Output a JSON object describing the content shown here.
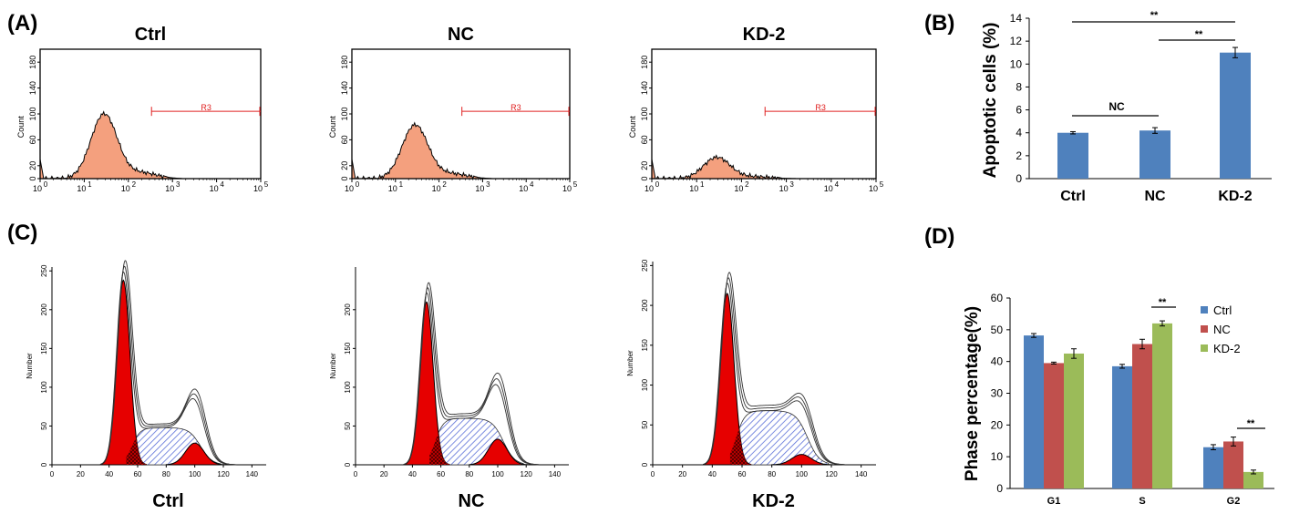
{
  "panel_labels": [
    "(A)",
    "(B)",
    "(C)",
    "(D)"
  ],
  "histograms": {
    "panels": [
      {
        "title": "Ctrl",
        "peak": 100,
        "gate_label": "R3"
      },
      {
        "title": "NC",
        "peak": 83,
        "gate_label": "R3"
      },
      {
        "title": "KD-2",
        "peak": 33,
        "gate_label": "R3"
      }
    ],
    "ylabel": "Count",
    "yticks": [
      "0",
      "20",
      "60",
      "100",
      "140",
      "180"
    ],
    "xticks": [
      "10",
      "10",
      "10",
      "10",
      "10",
      "10"
    ],
    "xexp": [
      "0",
      "1",
      "2",
      "3",
      "4",
      "5"
    ]
  },
  "cellcycle": {
    "panels": [
      {
        "label": "Ctrl",
        "g1_peak": 238,
        "s_level": 48,
        "g2_peak": 28,
        "ymax": 250,
        "yticks": [
          "0",
          "50",
          "100",
          "150",
          "200",
          "250"
        ]
      },
      {
        "label": "NC",
        "g1_peak": 210,
        "s_level": 60,
        "g2_peak": 33,
        "ymax": 250,
        "yticks": [
          "0",
          "50",
          "100",
          "150",
          "200"
        ]
      },
      {
        "label": "KD-2",
        "g1_peak": 215,
        "s_level": 68,
        "g2_peak": 13,
        "ymax": 250,
        "yticks": [
          "0",
          "50",
          "100",
          "150",
          "200",
          "250"
        ]
      }
    ],
    "ylabel": "Number",
    "xticks": [
      "0",
      "20",
      "40",
      "60",
      "80",
      "100",
      "120",
      "140"
    ]
  },
  "chart_data": [
    {
      "type": "bar",
      "panel": "(B)",
      "categories": [
        "Ctrl",
        "NC",
        "KD-2"
      ],
      "values": [
        4.0,
        4.2,
        11.0
      ],
      "errors": [
        0.1,
        0.25,
        0.45
      ],
      "ylabel": "Apoptotic cells (%)",
      "ylim": [
        0,
        14
      ],
      "yticks": [
        "0",
        "2",
        "4",
        "6",
        "8",
        "10",
        "12",
        "14"
      ],
      "color": "#4f81bd",
      "annotations": [
        {
          "text": "**",
          "from": "Ctrl",
          "to": "KD-2"
        },
        {
          "text": "**",
          "from": "NC",
          "to": "KD-2"
        },
        {
          "text": "NC",
          "from": "Ctrl",
          "to": "NC"
        }
      ]
    },
    {
      "type": "bar",
      "panel": "(D)",
      "categories": [
        "G1",
        "S",
        "G2"
      ],
      "series": [
        {
          "name": "Ctrl",
          "values": [
            48.2,
            38.5,
            13.0
          ],
          "errors": [
            0.6,
            0.6,
            0.8
          ],
          "color": "#4f81bd"
        },
        {
          "name": "NC",
          "values": [
            39.5,
            45.5,
            14.8
          ],
          "errors": [
            0.3,
            1.5,
            1.4
          ],
          "color": "#c0504d"
        },
        {
          "name": "KD-2",
          "values": [
            42.5,
            52.0,
            5.2
          ],
          "errors": [
            1.5,
            0.8,
            0.6
          ],
          "color": "#9bbb59"
        }
      ],
      "ylabel": "Phase  percentage(%)",
      "ylim": [
        0,
        60
      ],
      "yticks": [
        "0",
        "10",
        "20",
        "30",
        "40",
        "50",
        "60"
      ],
      "legend": "top-right",
      "annotations": [
        {
          "text": "**",
          "category": "S"
        },
        {
          "text": "**",
          "category": "G2"
        }
      ]
    }
  ]
}
